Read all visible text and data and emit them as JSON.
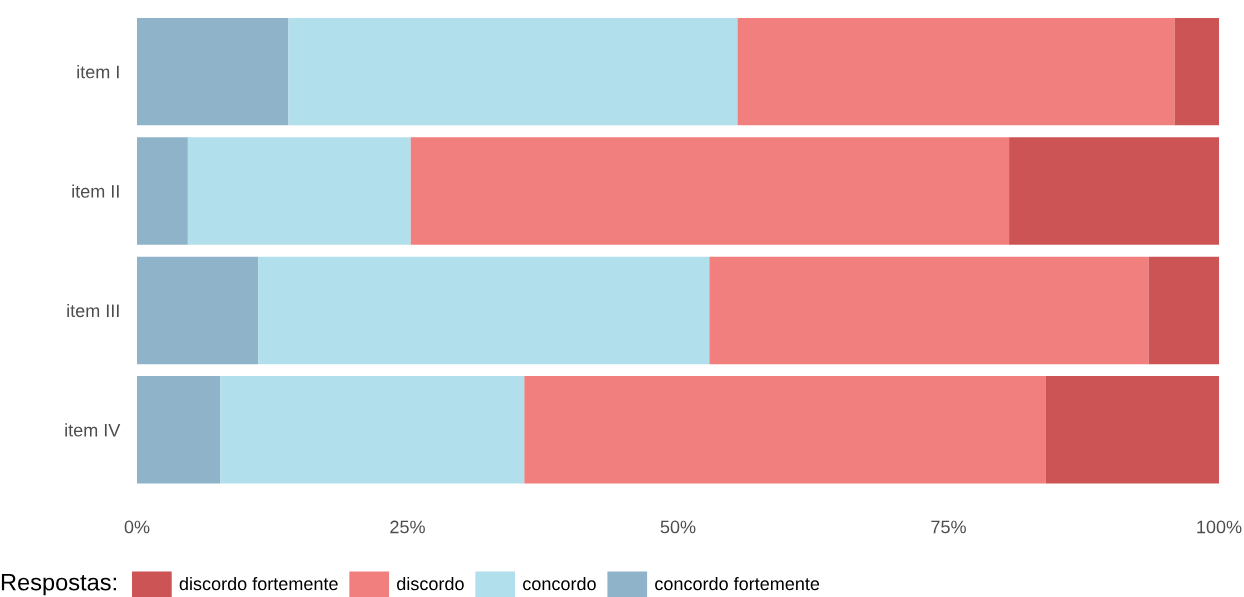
{
  "chart_data": {
    "type": "bar",
    "orientation": "horizontal",
    "stacked": true,
    "categories": [
      "item I",
      "item II",
      "item III",
      "item IV"
    ],
    "series": [
      {
        "name": "concordo fortemente",
        "color": "#8fb4c9",
        "values": [
          14.0,
          4.7,
          11.2,
          7.7
        ]
      },
      {
        "name": "concordo",
        "color": "#b1dfec",
        "values": [
          41.5,
          20.6,
          41.7,
          28.1
        ]
      },
      {
        "name": "discordo",
        "color": "#f07f7d",
        "values": [
          40.4,
          55.3,
          40.6,
          48.2
        ]
      },
      {
        "name": "discordo fortemente",
        "color": "#cc5454",
        "values": [
          4.1,
          19.4,
          6.5,
          16.0
        ]
      }
    ],
    "xlim": [
      0,
      100
    ],
    "xticks": [
      {
        "value": 0,
        "label": "0%"
      },
      {
        "value": 25,
        "label": "25%"
      },
      {
        "value": 50,
        "label": "50%"
      },
      {
        "value": 75,
        "label": "75%"
      },
      {
        "value": 100,
        "label": "100%"
      }
    ],
    "legend": "bottom",
    "legend_title": "Respostas:",
    "grid": false
  }
}
